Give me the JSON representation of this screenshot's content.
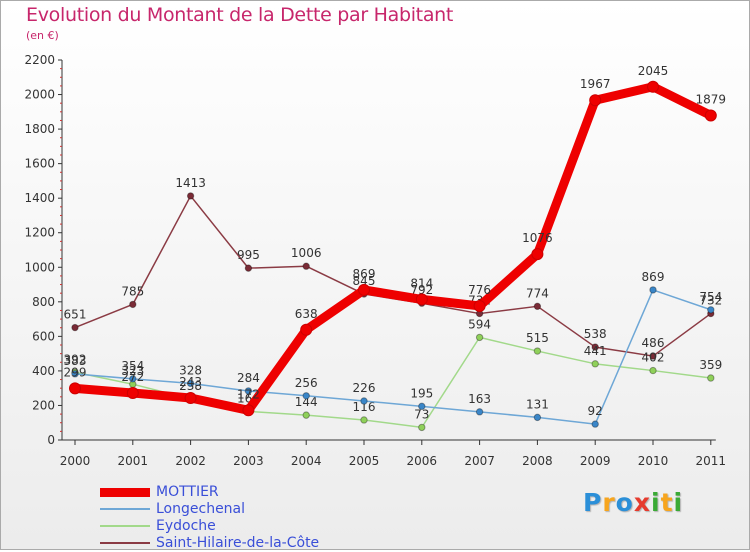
{
  "title": "Evolution du Montant de la Dette par Habitant",
  "subtitle": "(en €)",
  "logo": {
    "letters": [
      "P",
      "r",
      "o",
      "x",
      "i",
      "t",
      "i"
    ],
    "colors": [
      "#2b8fd8",
      "#f7a51e",
      "#2b8fd8",
      "#e63b2e",
      "#3aaa35",
      "#f7a51e",
      "#3aaa35"
    ]
  },
  "chart_data": {
    "type": "line",
    "categories": [
      "2000",
      "2001",
      "2002",
      "2003",
      "2004",
      "2005",
      "2006",
      "2007",
      "2008",
      "2009",
      "2010",
      "2011"
    ],
    "ylim": [
      0,
      2200
    ],
    "yticks": [
      "0",
      "200",
      "400",
      "600",
      "800",
      "1000",
      "1200",
      "1400",
      "1600",
      "1800",
      "2000",
      "2200"
    ],
    "grid": false,
    "legend_position": "bottom-left",
    "series": [
      {
        "name": "Saint-Hilaire-de-la-Côte",
        "color": "#7a2b36",
        "line_color": "#8b3b44",
        "values": [
          651,
          785,
          1413,
          995,
          1006,
          845,
          792,
          732,
          774,
          538,
          486,
          732
        ],
        "labels": [
          "651",
          "785",
          "1413",
          "995",
          "1006",
          "845",
          "792",
          "732",
          "774",
          "538",
          "486",
          "732"
        ],
        "weight": "thin"
      },
      {
        "name": "Eydoche",
        "color": "#8fd05a",
        "line_color": "#a2d98a",
        "values": [
          392,
          323,
          238,
          166,
          144,
          116,
          73,
          594,
          515,
          441,
          402,
          359
        ],
        "labels": [
          "392",
          "323",
          "238",
          "166",
          "144",
          "116",
          "73",
          "594",
          "515",
          "441",
          "402",
          "359"
        ],
        "weight": "thin"
      },
      {
        "name": "Longechenal",
        "color": "#3a86c8",
        "line_color": "#6ea7d6",
        "values": [
          383,
          354,
          328,
          284,
          256,
          226,
          195,
          163,
          131,
          92,
          869,
          754
        ],
        "labels": [
          "383",
          "354",
          "328",
          "284",
          "256",
          "226",
          "195",
          "163",
          "131",
          "92",
          "869",
          "754"
        ],
        "weight": "thin"
      },
      {
        "name": "MOTTIER",
        "color": "#ee0000",
        "line_color": "#ee0000",
        "values": [
          299,
          272,
          243,
          172,
          638,
          869,
          814,
          776,
          1076,
          1967,
          2045,
          1879
        ],
        "labels": [
          "299",
          "272",
          "243",
          "172",
          "638",
          "869",
          "814",
          "776",
          "1076",
          "1967",
          "2045",
          "1879"
        ],
        "weight": "thick"
      }
    ]
  },
  "legend": [
    {
      "name": "MOTTIER",
      "color": "#ee0000",
      "text_color": "#3a4fd8",
      "thickness": 9
    },
    {
      "name": "Longechenal",
      "color": "#6ea7d6",
      "text_color": "#3a4fd8",
      "thickness": 2
    },
    {
      "name": "Eydoche",
      "color": "#a2d98a",
      "text_color": "#3a4fd8",
      "thickness": 2
    },
    {
      "name": "Saint-Hilaire-de-la-Côte",
      "color": "#8b3b44",
      "text_color": "#3a4fd8",
      "thickness": 2
    }
  ]
}
